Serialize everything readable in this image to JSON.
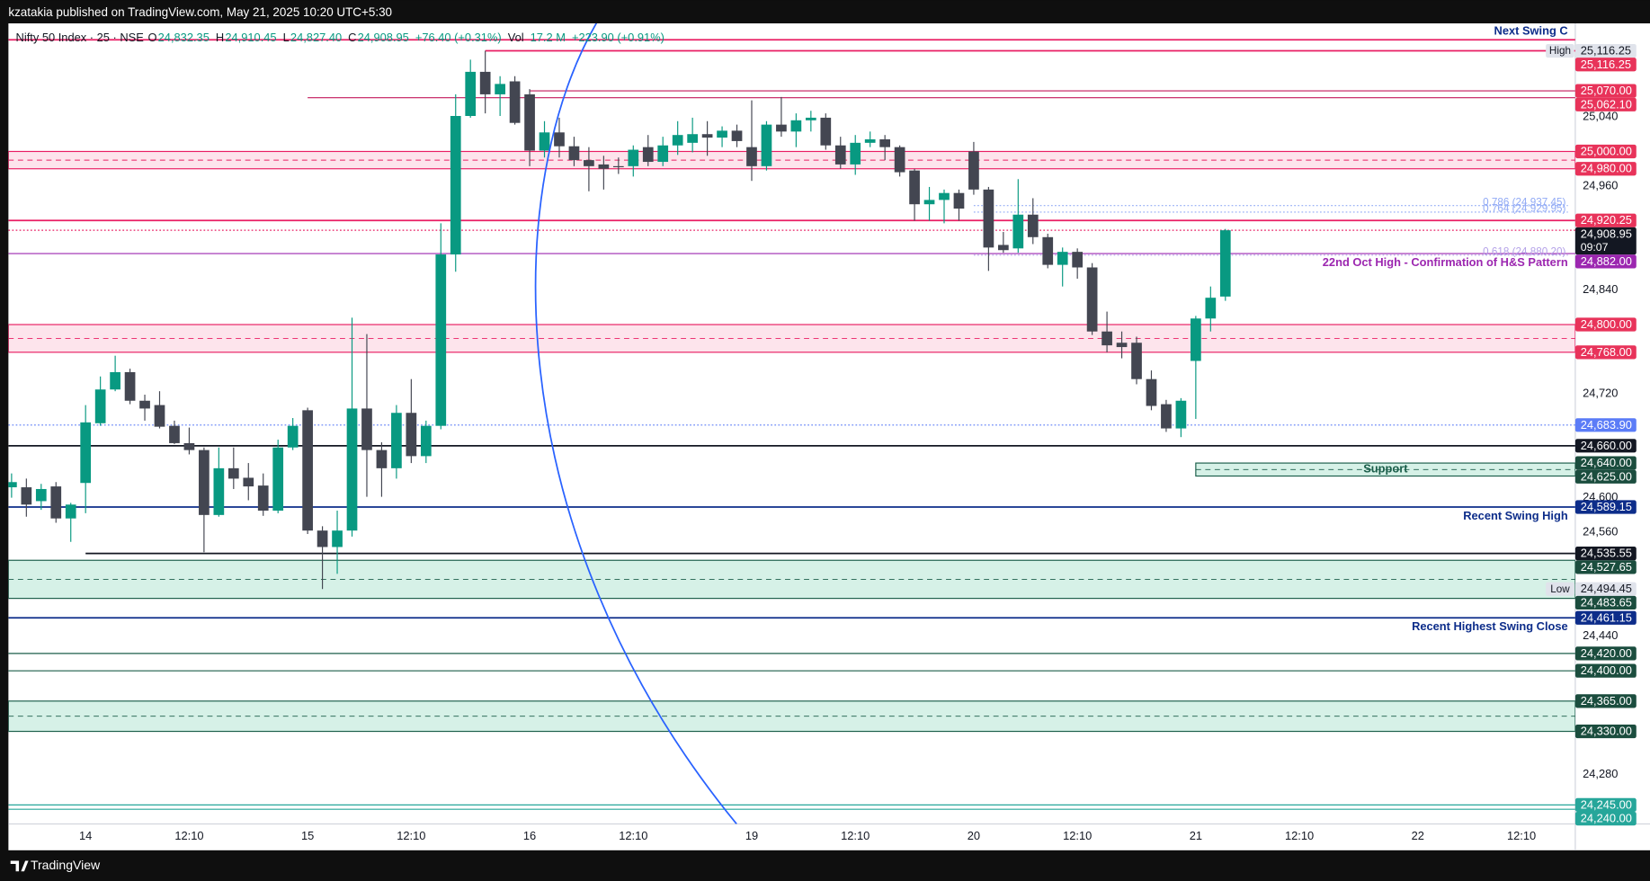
{
  "header": {
    "publisher": "kzatakia published on TradingView.com, May 21, 2025 10:20 UTC+5:30"
  },
  "footer": {
    "brand": "TradingView"
  },
  "chart_data": {
    "type": "candlestick",
    "title": "Nifty 50 Index · 25 · NSE",
    "legend": [
      {
        "text": "O",
        "color": "#131722"
      },
      {
        "text": "24,832.35",
        "color": "#089981"
      },
      {
        "text": "H",
        "color": "#131722"
      },
      {
        "text": "24,910.45",
        "color": "#089981"
      },
      {
        "text": "L",
        "color": "#131722"
      },
      {
        "text": "24,827.40",
        "color": "#089981"
      },
      {
        "text": "C",
        "color": "#131722"
      },
      {
        "text": "24,908.95",
        "color": "#089981"
      },
      {
        "text": "+76.40 (+0.31%)",
        "color": "#089981"
      },
      {
        "text": "Vol",
        "color": "#131722"
      },
      {
        "text": "17.2 M",
        "color": "#089981"
      },
      {
        "text": "+223.90 (+0.91%)",
        "color": "#089981"
      }
    ],
    "categories": [
      null,
      null,
      null,
      null,
      null,
      "14",
      null,
      null,
      null,
      null,
      null,
      null,
      "12:10",
      null,
      null,
      null,
      null,
      null,
      null,
      null,
      "15",
      null,
      null,
      null,
      null,
      null,
      null,
      "12:10",
      null,
      null,
      null,
      null,
      null,
      null,
      null,
      "16",
      null,
      null,
      null,
      null,
      null,
      null,
      "12:10",
      null,
      null,
      null,
      null,
      null,
      null,
      null,
      "19",
      null,
      null,
      null,
      null,
      null,
      null,
      "12:10",
      null,
      null,
      null,
      null,
      null,
      null,
      null,
      "20",
      null,
      null,
      null,
      null,
      null,
      null,
      "12:10",
      null,
      null,
      null,
      null,
      null,
      null,
      null,
      "21",
      null,
      null,
      null,
      null,
      null,
      null,
      "12:10",
      null,
      null,
      null,
      null,
      null,
      null,
      null,
      "22",
      null,
      null,
      null,
      null,
      null,
      null,
      "12:10",
      null,
      null,
      null
    ],
    "open": [
      24612,
      24612,
      24596,
      24613,
      24576,
      24617,
      24686,
      24725,
      24745,
      24712,
      24707,
      24683,
      24663,
      24655,
      24580,
      24634,
      24623,
      24614,
      24585,
      24658,
      24701,
      24562,
      24543,
      24562,
      24703,
      24655,
      24634,
      24698,
      24648,
      24683,
      24881,
      25041,
      25092,
      25066,
      25081,
      25066,
      25001,
      25022,
      25006,
      24990,
      24985,
      24983,
      24983,
      25005,
      24988,
      25007,
      25010,
      25020,
      25016,
      25024,
      25005,
      24983,
      25031,
      25023,
      25036,
      25039,
      25007,
      24985,
      25010,
      25014,
      25005,
      24978,
      24939,
      24944,
      24952,
      25000,
      24956,
      24892,
      24888,
      24927,
      24901,
      24869,
      24884,
      24866,
      24792,
      24779,
      24779,
      24737,
      24708,
      24680,
      24758,
      24807,
      24832.35,
      null,
      null,
      null,
      null,
      null,
      null,
      null,
      null,
      null,
      null,
      null,
      null,
      null,
      null,
      null,
      null,
      null,
      null,
      null,
      null,
      null,
      null,
      null
    ],
    "high": [
      24628,
      24622,
      24616,
      24618,
      24594,
      24707,
      24740,
      24764,
      24749,
      24719,
      24723,
      24689,
      24681,
      24658,
      24658,
      24658,
      24640,
      24628,
      24667,
      24692,
      24704,
      24567,
      24585,
      24808,
      24789,
      24664,
      24707,
      24737,
      24689,
      24917,
      25066,
      25106,
      25116.25,
      25087,
      25087,
      25072,
      25035,
      25039,
      25017,
      25005,
      24995,
      24993,
      25007,
      25019,
      25017,
      25035,
      25039,
      25035,
      25029,
      25031,
      25059,
      25035,
      25063,
      25044,
      25047,
      25044,
      25017,
      25019,
      25023,
      25019,
      25007,
      24980,
      24959,
      24956,
      24956,
      25011,
      24959,
      24907,
      24968,
      24946,
      24905,
      24889,
      24888,
      24871,
      24815,
      24792,
      24786,
      24747,
      24713,
      24715,
      24810,
      24844,
      24910.45,
      null,
      null,
      null,
      null,
      null,
      null,
      null,
      null,
      null,
      null,
      null,
      null,
      null,
      null,
      null,
      null,
      null,
      null,
      null,
      null,
      null,
      null,
      null
    ],
    "low": [
      24600,
      24578,
      24586,
      24571,
      24549,
      24582,
      24683,
      24723,
      24708,
      24689,
      24680,
      24662,
      24650,
      24537,
      24578,
      24610,
      24597,
      24579,
      24582,
      24655,
      24558,
      24494.45,
      24512,
      24555,
      24601,
      24601,
      24622,
      24640,
      24640,
      24679,
      24861,
      25039,
      25044,
      25041,
      25031,
      24983,
      24993,
      24993,
      24983,
      24954,
      24956,
      24974,
      24971,
      24983,
      24983,
      24996,
      24999,
      24995,
      25005,
      25005,
      24966,
      24978,
      25017,
      25005,
      25023,
      25002,
      24980,
      24973,
      25005,
      24990,
      24971,
      24920,
      24920,
      24917,
      24920,
      24950,
      24862,
      24883,
      24883,
      24893,
      24865,
      24844,
      24853,
      24788,
      24768,
      24761,
      24731,
      24701,
      24676,
      24670,
      24691,
      24792,
      24827.4,
      null,
      null,
      null,
      null,
      null,
      null,
      null,
      null,
      null,
      null,
      null,
      null,
      null,
      null,
      null,
      null,
      null,
      null,
      null,
      null,
      null,
      null,
      null
    ],
    "close": [
      24618,
      24592,
      24610,
      24576,
      24592,
      24687,
      24725,
      24745,
      24712,
      24703,
      24682,
      24663,
      24655,
      24580,
      24634,
      24622,
      24613,
      24585,
      24658,
      24683,
      24562,
      24543,
      24562,
      24703,
      24655,
      24634,
      24698,
      24648,
      24683,
      24881,
      25041,
      25092,
      25066,
      25078,
      25033,
      25001,
      25022,
      25006,
      24990,
      24983,
      24980,
      24982,
      25002,
      24988,
      25007,
      25019,
      25020,
      25016,
      25024,
      25012,
      24983,
      25031,
      25023,
      25036,
      25039,
      25007,
      24985,
      25010,
      25014,
      25005,
      24976,
      24939,
      24944,
      24952,
      24934,
      24956,
      24889,
      24886,
      24927,
      24901,
      24869,
      24884,
      24866,
      24792,
      24776,
      24774,
      24737,
      24706,
      24680,
      24712,
      24807,
      24831,
      24908.95,
      null,
      null,
      null,
      null,
      null,
      null,
      null,
      null,
      null,
      null,
      null,
      null,
      null,
      null,
      null,
      null,
      null,
      null,
      null,
      null,
      null,
      null,
      null
    ],
    "colors": {
      "up": "#089981",
      "down": "#434651"
    },
    "ylim": [
      24223,
      25148
    ],
    "yticks": [
      {
        "value": 25040,
        "label": "25,040"
      },
      {
        "value": 24960,
        "label": "24,960"
      },
      {
        "value": 24840,
        "label": "24,840"
      },
      {
        "value": 24720,
        "label": "24,720"
      },
      {
        "value": 24600,
        "label": "24,600"
      },
      {
        "value": 24560,
        "label": "24,560"
      },
      {
        "value": 24440,
        "label": "24,440"
      },
      {
        "value": 24280,
        "label": "24,280"
      }
    ],
    "zones": [
      {
        "top": 25000,
        "bottom": 24980,
        "fill": "#fde4ec",
        "stroke": "#e91e63"
      },
      {
        "top": 24800,
        "bottom": 24768,
        "fill": "#fde4ec",
        "stroke": "#e91e63"
      },
      {
        "top": 24640,
        "bottom": 24625,
        "fill": "#d6f1e7",
        "stroke": "#1b5e4a",
        "start": 80,
        "text": "Support"
      },
      {
        "top": 24527.65,
        "bottom": 24483.65,
        "fill": "#d6f1e7",
        "stroke": "#1b5e4a"
      },
      {
        "top": 24365,
        "bottom": 24330,
        "fill": "#d6f1e7",
        "stroke": "#1b5e4a"
      }
    ],
    "lines": [
      {
        "value": 25129,
        "color": "#e91e63",
        "width": 1.5,
        "text": "Next Swing C",
        "text_color": "#0d2d8a",
        "text_pos": "above"
      },
      {
        "value": 25116.25,
        "color": "#e91e63",
        "width": 1.5,
        "start": 32
      },
      {
        "value": 25070,
        "color": "#c2185b",
        "width": 1,
        "start": 35
      },
      {
        "value": 25062.1,
        "color": "#c2185b",
        "width": 1,
        "start": 20
      },
      {
        "value": 24920.25,
        "color": "#e91e63",
        "width": 1.5
      },
      {
        "value": 24908.95,
        "color": "#e91e63",
        "width": 1,
        "style": "dotted"
      },
      {
        "value": 24882,
        "color": "#9c27b0",
        "width": 1,
        "text": "22nd Oct High - Confirmation of H&S Pattern",
        "text_color": "#9c27b0",
        "text_pos": "below"
      },
      {
        "value": 24683.9,
        "color": "#5b7cf7",
        "width": 1,
        "style": "dotted"
      },
      {
        "value": 24660,
        "color": "#131722",
        "width": 1.5
      },
      {
        "value": 24589.15,
        "color": "#0d2d8a",
        "width": 1.5,
        "text": "Recent Swing High",
        "text_color": "#0d2d8a",
        "text_pos": "below"
      },
      {
        "value": 24535.55,
        "color": "#131722",
        "width": 1.5,
        "start": 5
      },
      {
        "value": 24461.15,
        "color": "#0d2d8a",
        "width": 1.5,
        "text": "Recent Highest Swing Close",
        "text_color": "#0d2d8a",
        "text_pos": "below"
      },
      {
        "value": 24420,
        "color": "#1b5e4a",
        "width": 1
      },
      {
        "value": 24400,
        "color": "#1b5e4a",
        "width": 1
      },
      {
        "value": 24245,
        "color": "#26a69a",
        "width": 1
      },
      {
        "value": 24240,
        "color": "#26a69a",
        "width": 1
      }
    ],
    "fib": [
      {
        "value": 24937.45,
        "label": "0.786 (24,937.45)",
        "color": "#90a9f5",
        "start": 65
      },
      {
        "value": 24929.95,
        "label": "0.764 (24,929.95)",
        "color": "#90a9f5",
        "start": 65
      },
      {
        "value": 24880.2,
        "label": "0.618 (24,880.20)",
        "color": "#b3a0e8",
        "start": 65
      }
    ],
    "price_tags": [
      {
        "value": 25116.25,
        "label": "25,116.25",
        "bg": "#e0e3eb",
        "fg": "#131722",
        "badge": "High"
      },
      {
        "value": 25116.25,
        "label": "25,116.25",
        "bg": "#e8335a",
        "fg": "#ffffff"
      },
      {
        "value": 25070,
        "label": "25,070.00",
        "bg": "#e8335a",
        "fg": "#ffffff"
      },
      {
        "value": 25062.1,
        "label": "25,062.10",
        "bg": "#e8335a",
        "fg": "#ffffff"
      },
      {
        "value": 25000,
        "label": "25,000.00",
        "bg": "#e8335a",
        "fg": "#ffffff"
      },
      {
        "value": 24980,
        "label": "24,980.00",
        "bg": "#e8335a",
        "fg": "#ffffff"
      },
      {
        "value": 24920.25,
        "label": "24,920.25",
        "bg": "#e8335a",
        "fg": "#ffffff"
      },
      {
        "value": 24908.95,
        "label": "24,908.95",
        "bg": "#131722",
        "fg": "#ffffff",
        "sub": "09:07"
      },
      {
        "value": 24882,
        "label": "24,882.00",
        "bg": "#9c27b0",
        "fg": "#ffffff"
      },
      {
        "value": 24800,
        "label": "24,800.00",
        "bg": "#e8335a",
        "fg": "#ffffff"
      },
      {
        "value": 24768,
        "label": "24,768.00",
        "bg": "#e8335a",
        "fg": "#ffffff"
      },
      {
        "value": 24683.9,
        "label": "24,683.90",
        "bg": "#5b7cf7",
        "fg": "#ffffff"
      },
      {
        "value": 24660,
        "label": "24,660.00",
        "bg": "#131722",
        "fg": "#ffffff"
      },
      {
        "value": 24640,
        "label": "24,640.00",
        "bg": "#1b4d3e",
        "fg": "#ffffff"
      },
      {
        "value": 24625,
        "label": "24,625.00",
        "bg": "#1b4d3e",
        "fg": "#ffffff"
      },
      {
        "value": 24589.15,
        "label": "24,589.15",
        "bg": "#0d2d8a",
        "fg": "#ffffff"
      },
      {
        "value": 24535.55,
        "label": "24,535.55",
        "bg": "#131722",
        "fg": "#ffffff"
      },
      {
        "value": 24527.65,
        "label": "24,527.65",
        "bg": "#1b4d3e",
        "fg": "#ffffff"
      },
      {
        "value": 24494.45,
        "label": "24,494.45",
        "bg": "#e0e3eb",
        "fg": "#131722",
        "badge": "Low"
      },
      {
        "value": 24483.65,
        "label": "24,483.65",
        "bg": "#1b4d3e",
        "fg": "#ffffff"
      },
      {
        "value": 24461.15,
        "label": "24,461.15",
        "bg": "#0d2d8a",
        "fg": "#ffffff"
      },
      {
        "value": 24420,
        "label": "24,420.00",
        "bg": "#1b4d3e",
        "fg": "#ffffff"
      },
      {
        "value": 24400,
        "label": "24,400.00",
        "bg": "#1b4d3e",
        "fg": "#ffffff"
      },
      {
        "value": 24365,
        "label": "24,365.00",
        "bg": "#1b4d3e",
        "fg": "#ffffff"
      },
      {
        "value": 24330,
        "label": "24,330.00",
        "bg": "#1b4d3e",
        "fg": "#ffffff"
      },
      {
        "value": 24245,
        "label": "24,245.00",
        "bg": "#26a69a",
        "fg": "#ffffff"
      },
      {
        "value": 24240,
        "label": "24,240.00",
        "bg": "#26a69a",
        "fg": "#ffffff"
      }
    ]
  }
}
